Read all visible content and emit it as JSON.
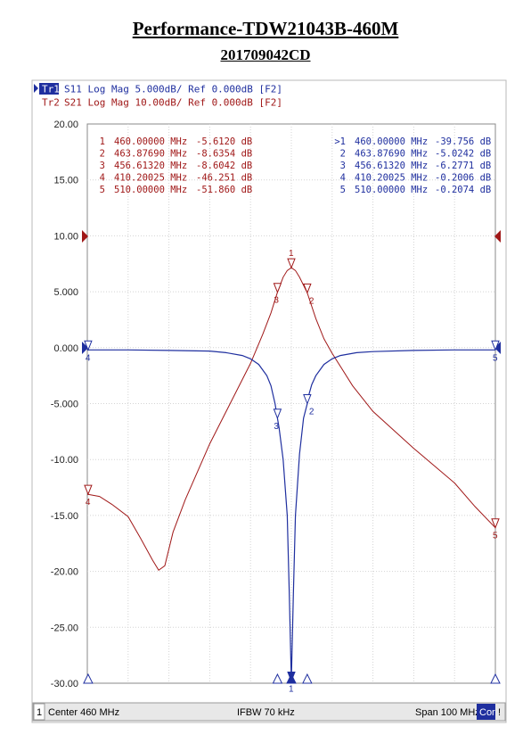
{
  "header": {
    "title": "Performance-TDW21043B-460M",
    "subtitle": "201709042CD"
  },
  "traces": [
    {
      "label": "Tr1",
      "text": "S11 Log Mag 5.000dB/ Ref 0.000dB [F2]",
      "color": "#1f2f9f",
      "active": true
    },
    {
      "label": "Tr2",
      "text": "S21 Log Mag 10.00dB/ Ref 0.000dB [F2]",
      "color": "#a01818",
      "active": false
    }
  ],
  "chart_data": {
    "type": "line",
    "ylim": [
      -30,
      20
    ],
    "xlim": [
      410,
      510
    ],
    "y_ticks": [
      "20.00",
      "15.00",
      "10.00",
      "5.000",
      "0.000",
      "-5.000",
      "-10.00",
      "-15.00",
      "-20.00",
      "-25.00",
      "-30.00"
    ],
    "grid": true,
    "x_unit": "MHz",
    "series": [
      {
        "name": "S11",
        "color": "#1f2f9f",
        "x": [
          410,
          420,
          430,
          440,
          444,
          448,
          450,
          452,
          454,
          455,
          456,
          456.6,
          457,
          458,
          459,
          459.5,
          460,
          460.5,
          461,
          462,
          463,
          463.9,
          464,
          465,
          466,
          468,
          470,
          472,
          476,
          480,
          490,
          500,
          510
        ],
        "y": [
          -0.2,
          -0.2,
          -0.25,
          -0.3,
          -0.45,
          -0.7,
          -1.0,
          -1.5,
          -2.5,
          -3.4,
          -5.0,
          -6.3,
          -7.2,
          -10,
          -15,
          -22,
          -29.8,
          -22,
          -15,
          -9.5,
          -6.3,
          -5.0,
          -4.6,
          -3.3,
          -2.5,
          -1.5,
          -1.0,
          -0.7,
          -0.45,
          -0.35,
          -0.25,
          -0.2,
          -0.2
        ]
      },
      {
        "name": "S21",
        "color": "#a01818",
        "x": [
          410,
          413,
          416,
          420,
          423,
          426,
          427.5,
          429,
          431,
          434,
          440,
          445,
          450,
          453,
          455,
          456.6,
          458,
          459,
          460,
          461,
          462,
          463.9,
          466,
          468,
          470,
          475,
          480,
          490,
          500,
          505,
          510
        ],
        "y": [
          -13.1,
          -13.3,
          -14,
          -15.1,
          -17,
          -19,
          -19.9,
          -19.5,
          -16.5,
          -13.6,
          -8.6,
          -5.0,
          -1.4,
          1.2,
          3.1,
          4.95,
          6.3,
          6.9,
          7.15,
          6.9,
          6.3,
          4.9,
          2.6,
          0.8,
          -0.5,
          -3.4,
          -5.7,
          -9.0,
          -12.1,
          -14.2,
          -16.1
        ]
      }
    ],
    "markers_s21": [
      {
        "n": "1",
        "freq": "460.00000 MHz",
        "val": "-5.6120 dB"
      },
      {
        "n": "2",
        "freq": "463.87690 MHz",
        "val": "-8.6354 dB"
      },
      {
        "n": "3",
        "freq": "456.61320 MHz",
        "val": "-8.6042 dB"
      },
      {
        "n": "4",
        "freq": "410.20025 MHz",
        "val": "-46.251 dB"
      },
      {
        "n": "5",
        "freq": "510.00000 MHz",
        "val": "-51.860 dB"
      }
    ],
    "markers_s11": [
      {
        "n": ">1",
        "freq": "460.00000 MHz",
        "val": "-39.756 dB"
      },
      {
        "n": "2",
        "freq": "463.87690 MHz",
        "val": "-5.0242 dB"
      },
      {
        "n": "3",
        "freq": "456.61320 MHz",
        "val": "-6.2771 dB"
      },
      {
        "n": "4",
        "freq": "410.20025 MHz",
        "val": "-0.2006 dB"
      },
      {
        "n": "5",
        "freq": "510.00000 MHz",
        "val": "-0.2074 dB"
      }
    ],
    "trace_markers": [
      {
        "series": "S21",
        "n": "1",
        "x": 460,
        "y": 7.15
      },
      {
        "series": "S21",
        "n": "2",
        "x": 463.9,
        "y": 4.9
      },
      {
        "series": "S21",
        "n": "3",
        "x": 456.6,
        "y": 4.95
      },
      {
        "series": "S21",
        "n": "4",
        "x": 410.2,
        "y": -13.1
      },
      {
        "series": "S21",
        "n": "5",
        "x": 510,
        "y": -16.1
      },
      {
        "series": "S11",
        "n": "1",
        "x": 460,
        "y": -29.8
      },
      {
        "series": "S11",
        "n": "2",
        "x": 463.9,
        "y": -5.0
      },
      {
        "series": "S11",
        "n": "3",
        "x": 456.6,
        "y": -6.3
      },
      {
        "series": "S11",
        "n": "4",
        "x": 410.2,
        "y": -0.2
      },
      {
        "series": "S11",
        "n": "5",
        "x": 510,
        "y": -0.2
      }
    ],
    "bottom_markers_x": [
      410.2,
      456.6,
      460,
      463.9,
      510
    ]
  },
  "status": {
    "channel": "1",
    "center": "Center 460 MHz",
    "ifbw": "IFBW 70 kHz",
    "span": "Span 100 MHz",
    "cor": "Cor",
    "bang": "!"
  }
}
